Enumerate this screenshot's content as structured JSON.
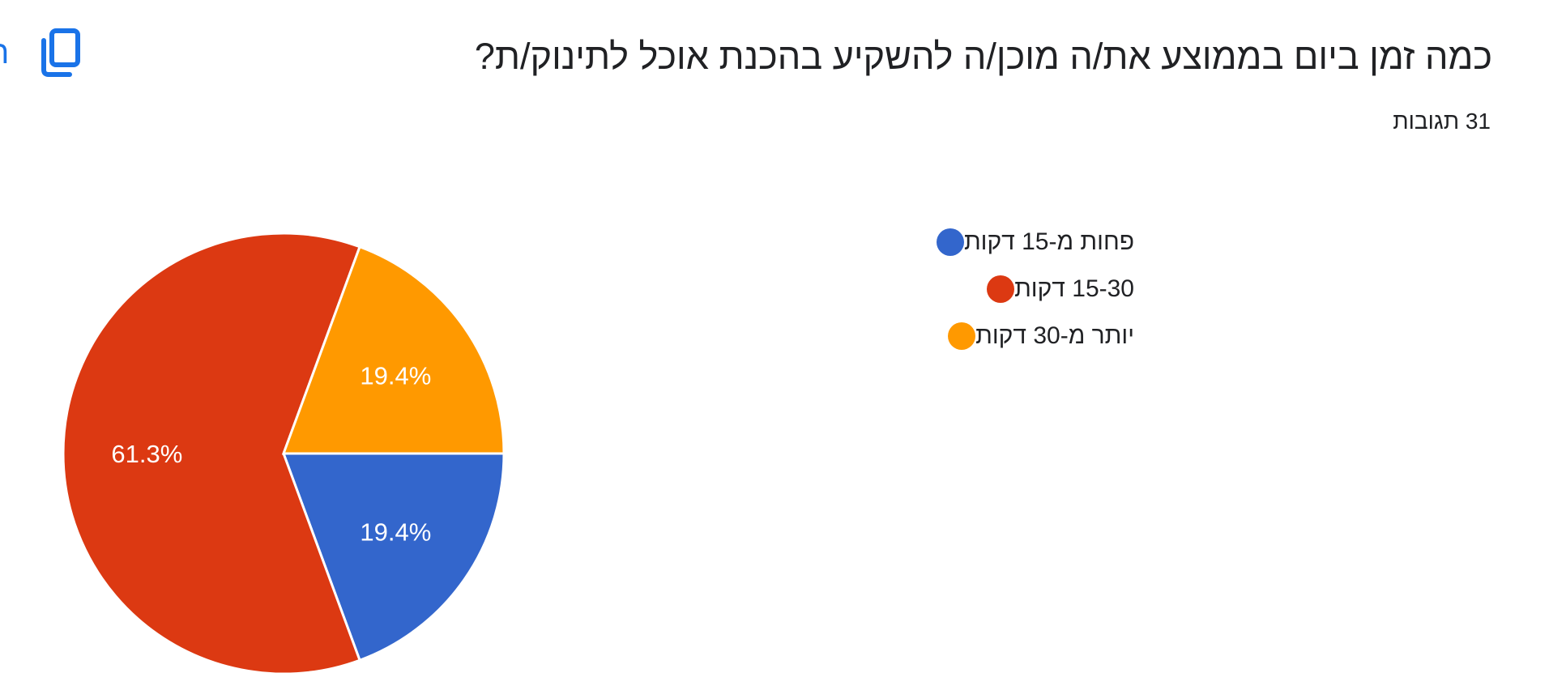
{
  "question": {
    "title": "כמה זמן ביום בממוצע את/ה מוכן/ה להשקיע בהכנת אוכל לתינוק/ת?",
    "responses": "31 תגובות"
  },
  "toolbar": {
    "copy_icon": "copy-icon",
    "copy_text_fragment": "ה"
  },
  "chart_data": {
    "type": "pie",
    "title": "",
    "legend_position": "right",
    "slices": [
      {
        "label": "פחות מ-15 דקות",
        "value": 19.4,
        "display": "19.4%",
        "color": "#3366cc"
      },
      {
        "label": "15-30 דקות",
        "value": 61.3,
        "display": "61.3%",
        "color": "#dc3912"
      },
      {
        "label": "יותר מ-30 דקות",
        "value": 19.4,
        "display": "19.4%",
        "color": "#ff9900"
      }
    ]
  }
}
